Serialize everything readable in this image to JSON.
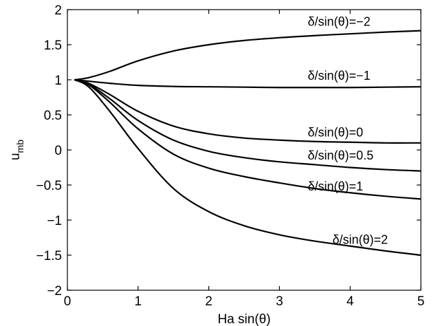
{
  "chart_data": {
    "type": "line",
    "xlabel": "Ha sin(θ)",
    "ylabel": "u",
    "ylabel_subscript": "mb",
    "xlim": [
      0,
      5
    ],
    "ylim": [
      -2,
      2
    ],
    "grid": false,
    "xticks": [
      0,
      1,
      2,
      3,
      4,
      5
    ],
    "xtick_labels": [
      "0",
      "1",
      "2",
      "3",
      "4",
      "5"
    ],
    "yticks": [
      -2,
      -1.5,
      -1,
      -0.5,
      0,
      0.5,
      1,
      1.5,
      2
    ],
    "ytick_labels": [
      "−2",
      "−1.5",
      "−1",
      "−0.5",
      "0",
      "0.5",
      "1",
      "1.5",
      "2"
    ],
    "series": [
      {
        "name": "δ/sin(θ)=−2",
        "x": [
          0.1,
          0.3,
          0.6,
          1.0,
          1.5,
          2.0,
          2.5,
          3.0,
          3.5,
          4.0,
          4.5,
          5.0
        ],
        "values": [
          1.0,
          1.03,
          1.12,
          1.27,
          1.41,
          1.5,
          1.56,
          1.6,
          1.63,
          1.655,
          1.68,
          1.7
        ]
      },
      {
        "name": "δ/sin(θ)=−1",
        "x": [
          0.1,
          0.3,
          0.6,
          1.0,
          1.5,
          2.0,
          2.5,
          3.0,
          3.5,
          4.0,
          4.5,
          5.0
        ],
        "values": [
          1.0,
          0.98,
          0.95,
          0.92,
          0.905,
          0.9,
          0.895,
          0.89,
          0.89,
          0.89,
          0.895,
          0.9
        ]
      },
      {
        "name": "δ/sin(θ)=0",
        "x": [
          0.1,
          0.3,
          0.6,
          1.0,
          1.5,
          2.0,
          2.5,
          3.0,
          3.5,
          4.0,
          4.5,
          5.0
        ],
        "values": [
          1.0,
          0.95,
          0.79,
          0.55,
          0.34,
          0.23,
          0.17,
          0.14,
          0.12,
          0.11,
          0.1,
          0.1
        ]
      },
      {
        "name": "δ/sin(θ)=0.5",
        "x": [
          0.1,
          0.3,
          0.6,
          1.0,
          1.5,
          2.0,
          2.5,
          3.0,
          3.5,
          4.0,
          4.5,
          5.0
        ],
        "values": [
          1.0,
          0.94,
          0.73,
          0.42,
          0.14,
          -0.02,
          -0.11,
          -0.17,
          -0.21,
          -0.25,
          -0.28,
          -0.3
        ]
      },
      {
        "name": "δ/sin(θ)=1",
        "x": [
          0.1,
          0.3,
          0.6,
          1.0,
          1.5,
          2.0,
          2.5,
          3.0,
          3.5,
          4.0,
          4.5,
          5.0
        ],
        "values": [
          1.0,
          0.93,
          0.68,
          0.3,
          -0.06,
          -0.26,
          -0.38,
          -0.47,
          -0.55,
          -0.61,
          -0.66,
          -0.7
        ]
      },
      {
        "name": "δ/sin(θ)=2",
        "x": [
          0.1,
          0.3,
          0.6,
          1.0,
          1.5,
          2.0,
          2.5,
          3.0,
          3.5,
          4.0,
          4.5,
          5.0
        ],
        "values": [
          1.0,
          0.9,
          0.55,
          0.02,
          -0.55,
          -0.88,
          -1.08,
          -1.21,
          -1.3,
          -1.37,
          -1.44,
          -1.5
        ]
      }
    ],
    "annotations": [
      {
        "text": "δ/sin(θ)=−2",
        "series": 0,
        "anchor_x": 3.4,
        "anchor_y": 1.83
      },
      {
        "text": "δ/sin(θ)=−1",
        "series": 1,
        "anchor_x": 3.4,
        "anchor_y": 1.06
      },
      {
        "text": "δ/sin(θ)=0",
        "series": 2,
        "anchor_x": 3.4,
        "anchor_y": 0.25
      },
      {
        "text": "δ/sin(θ)=0.5",
        "series": 3,
        "anchor_x": 3.4,
        "anchor_y": -0.08
      },
      {
        "text": "δ/sin(θ)=1",
        "series": 4,
        "anchor_x": 3.4,
        "anchor_y": -0.52
      },
      {
        "text": "δ/sin(θ)=2",
        "series": 5,
        "anchor_x": 3.75,
        "anchor_y": -1.28
      }
    ],
    "line_color": "#000000"
  }
}
